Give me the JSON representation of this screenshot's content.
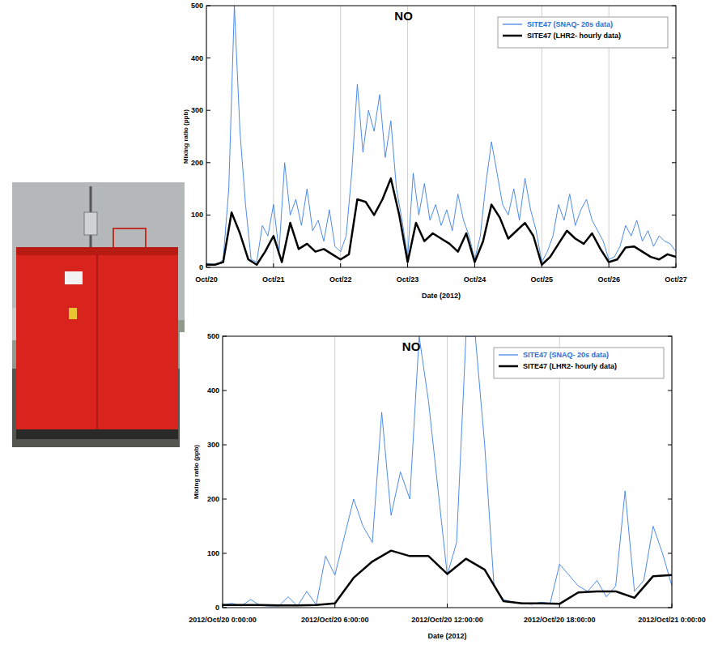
{
  "chart_data": [
    {
      "type": "line",
      "title": "NO",
      "x_label": "Date (2012)",
      "y_label": "Mixing ratio (ppb)",
      "xlim": [
        "2012-10-20T00:00",
        "2012-10-27T00:00"
      ],
      "xticks": [
        {
          "value": "2012-10-20T00:00",
          "label": "Oct/20"
        },
        {
          "value": "2012-10-21T00:00",
          "label": "Oct/21"
        },
        {
          "value": "2012-10-22T00:00",
          "label": "Oct/22"
        },
        {
          "value": "2012-10-23T00:00",
          "label": "Oct/23"
        },
        {
          "value": "2012-10-24T00:00",
          "label": "Oct/24"
        },
        {
          "value": "2012-10-25T00:00",
          "label": "Oct/25"
        },
        {
          "value": "2012-10-26T00:00",
          "label": "Oct/26"
        },
        {
          "value": "2012-10-27T00:00",
          "label": "Oct/27"
        }
      ],
      "ylim": [
        0,
        500
      ],
      "yticks": [
        0,
        100,
        200,
        300,
        400,
        500
      ],
      "grid": true,
      "legend": "upper right",
      "series": [
        {
          "name": "SITE47 (SNAQ- 20s data)",
          "color": "#3a7ee6",
          "line_style": "thin",
          "x": [
            "2012-10-20T00:00",
            "2012-10-20T02:00",
            "2012-10-20T04:00",
            "2012-10-20T06:00",
            "2012-10-20T08:00",
            "2012-10-20T10:00",
            "2012-10-20T12:00",
            "2012-10-20T14:00",
            "2012-10-20T16:00",
            "2012-10-20T18:00",
            "2012-10-20T20:00",
            "2012-10-20T22:00",
            "2012-10-21T00:00",
            "2012-10-21T02:00",
            "2012-10-21T04:00",
            "2012-10-21T06:00",
            "2012-10-21T08:00",
            "2012-10-21T10:00",
            "2012-10-21T12:00",
            "2012-10-21T14:00",
            "2012-10-21T16:00",
            "2012-10-21T18:00",
            "2012-10-21T20:00",
            "2012-10-21T22:00",
            "2012-10-22T00:00",
            "2012-10-22T02:00",
            "2012-10-22T04:00",
            "2012-10-22T06:00",
            "2012-10-22T08:00",
            "2012-10-22T10:00",
            "2012-10-22T12:00",
            "2012-10-22T14:00",
            "2012-10-22T16:00",
            "2012-10-22T18:00",
            "2012-10-22T20:00",
            "2012-10-22T22:00",
            "2012-10-23T00:00",
            "2012-10-23T02:00",
            "2012-10-23T04:00",
            "2012-10-23T06:00",
            "2012-10-23T08:00",
            "2012-10-23T10:00",
            "2012-10-23T12:00",
            "2012-10-23T14:00",
            "2012-10-23T16:00",
            "2012-10-23T18:00",
            "2012-10-23T20:00",
            "2012-10-23T22:00",
            "2012-10-24T00:00",
            "2012-10-24T02:00",
            "2012-10-24T04:00",
            "2012-10-24T06:00",
            "2012-10-24T08:00",
            "2012-10-24T10:00",
            "2012-10-24T12:00",
            "2012-10-24T14:00",
            "2012-10-24T16:00",
            "2012-10-24T18:00",
            "2012-10-24T20:00",
            "2012-10-24T22:00",
            "2012-10-25T00:00",
            "2012-10-25T02:00",
            "2012-10-25T04:00",
            "2012-10-25T06:00",
            "2012-10-25T08:00",
            "2012-10-25T10:00",
            "2012-10-25T12:00",
            "2012-10-25T14:00",
            "2012-10-25T16:00",
            "2012-10-25T18:00",
            "2012-10-25T20:00",
            "2012-10-25T22:00",
            "2012-10-26T00:00",
            "2012-10-26T02:00",
            "2012-10-26T04:00",
            "2012-10-26T06:00",
            "2012-10-26T08:00",
            "2012-10-26T10:00",
            "2012-10-26T12:00",
            "2012-10-26T14:00",
            "2012-10-26T16:00",
            "2012-10-26T18:00",
            "2012-10-26T20:00",
            "2012-10-26T22:00",
            "2012-10-27T00:00"
          ],
          "values": [
            8,
            6,
            5,
            15,
            150,
            500,
            260,
            120,
            15,
            10,
            80,
            60,
            120,
            30,
            200,
            100,
            130,
            80,
            150,
            70,
            90,
            50,
            110,
            40,
            30,
            60,
            180,
            350,
            220,
            300,
            260,
            330,
            210,
            280,
            150,
            90,
            20,
            180,
            100,
            160,
            90,
            120,
            80,
            110,
            70,
            140,
            90,
            60,
            15,
            60,
            160,
            240,
            180,
            120,
            100,
            150,
            90,
            170,
            110,
            70,
            10,
            30,
            60,
            120,
            90,
            140,
            80,
            110,
            130,
            90,
            70,
            50,
            15,
            20,
            40,
            80,
            60,
            90,
            50,
            70,
            40,
            60,
            50,
            45,
            30
          ]
        },
        {
          "name": "SITE47 (LHR2- hourly data)",
          "color": "#000000",
          "line_style": "thick",
          "x": [
            "2012-10-20T00:00",
            "2012-10-20T03:00",
            "2012-10-20T06:00",
            "2012-10-20T09:00",
            "2012-10-20T12:00",
            "2012-10-20T15:00",
            "2012-10-20T18:00",
            "2012-10-20T21:00",
            "2012-10-21T00:00",
            "2012-10-21T03:00",
            "2012-10-21T06:00",
            "2012-10-21T09:00",
            "2012-10-21T12:00",
            "2012-10-21T15:00",
            "2012-10-21T18:00",
            "2012-10-21T21:00",
            "2012-10-22T00:00",
            "2012-10-22T03:00",
            "2012-10-22T06:00",
            "2012-10-22T09:00",
            "2012-10-22T12:00",
            "2012-10-22T15:00",
            "2012-10-22T18:00",
            "2012-10-22T21:00",
            "2012-10-23T00:00",
            "2012-10-23T03:00",
            "2012-10-23T06:00",
            "2012-10-23T09:00",
            "2012-10-23T12:00",
            "2012-10-23T15:00",
            "2012-10-23T18:00",
            "2012-10-23T21:00",
            "2012-10-24T00:00",
            "2012-10-24T03:00",
            "2012-10-24T06:00",
            "2012-10-24T09:00",
            "2012-10-24T12:00",
            "2012-10-24T15:00",
            "2012-10-24T18:00",
            "2012-10-24T21:00",
            "2012-10-25T00:00",
            "2012-10-25T03:00",
            "2012-10-25T06:00",
            "2012-10-25T09:00",
            "2012-10-25T12:00",
            "2012-10-25T15:00",
            "2012-10-25T18:00",
            "2012-10-25T21:00",
            "2012-10-26T00:00",
            "2012-10-26T03:00",
            "2012-10-26T06:00",
            "2012-10-26T09:00",
            "2012-10-26T12:00",
            "2012-10-26T15:00",
            "2012-10-26T18:00",
            "2012-10-26T21:00",
            "2012-10-27T00:00"
          ],
          "values": [
            5,
            5,
            10,
            105,
            65,
            15,
            5,
            30,
            60,
            10,
            85,
            35,
            45,
            30,
            35,
            25,
            15,
            25,
            130,
            125,
            100,
            130,
            170,
            100,
            10,
            85,
            50,
            65,
            55,
            45,
            30,
            65,
            10,
            50,
            120,
            95,
            55,
            70,
            85,
            60,
            5,
            20,
            45,
            70,
            55,
            45,
            65,
            35,
            10,
            15,
            38,
            40,
            30,
            20,
            15,
            25,
            20
          ]
        }
      ]
    },
    {
      "type": "line",
      "title": "NO",
      "x_label": "Date (2012)",
      "y_label": "Mixing ratio (ppb)",
      "xlim": [
        "2012-10-20T00:00",
        "2012-10-21T00:00"
      ],
      "xticks": [
        {
          "value": "2012-10-20T00:00",
          "label": "2012/Oct/20 0:00:00"
        },
        {
          "value": "2012-10-20T06:00",
          "label": "2012/Oct/20 6:00:00"
        },
        {
          "value": "2012-10-20T12:00",
          "label": "2012/Oct/20 12:00:00"
        },
        {
          "value": "2012-10-20T18:00",
          "label": "2012/Oct/20 18:00:00"
        },
        {
          "value": "2012-10-21T00:00",
          "label": "2012/Oct/21 0:00:00"
        }
      ],
      "ylim": [
        0,
        500
      ],
      "yticks": [
        0,
        100,
        200,
        300,
        400,
        500
      ],
      "grid": true,
      "legend": "upper right",
      "series": [
        {
          "name": "SITE47 (SNAQ- 20s data)",
          "color": "#3a7ee6",
          "line_style": "thin",
          "x": [
            "2012-10-20T00:00",
            "2012-10-20T00:30",
            "2012-10-20T01:00",
            "2012-10-20T01:30",
            "2012-10-20T02:00",
            "2012-10-20T02:30",
            "2012-10-20T03:00",
            "2012-10-20T03:30",
            "2012-10-20T04:00",
            "2012-10-20T04:30",
            "2012-10-20T05:00",
            "2012-10-20T05:30",
            "2012-10-20T06:00",
            "2012-10-20T06:30",
            "2012-10-20T07:00",
            "2012-10-20T07:30",
            "2012-10-20T08:00",
            "2012-10-20T08:30",
            "2012-10-20T09:00",
            "2012-10-20T09:30",
            "2012-10-20T10:00",
            "2012-10-20T10:30",
            "2012-10-20T11:00",
            "2012-10-20T11:30",
            "2012-10-20T12:00",
            "2012-10-20T12:30",
            "2012-10-20T13:00",
            "2012-10-20T13:30",
            "2012-10-20T14:00",
            "2012-10-20T14:30",
            "2012-10-20T15:00",
            "2012-10-20T15:30",
            "2012-10-20T16:00",
            "2012-10-20T16:30",
            "2012-10-20T17:00",
            "2012-10-20T17:30",
            "2012-10-20T18:00",
            "2012-10-20T18:30",
            "2012-10-20T19:00",
            "2012-10-20T19:30",
            "2012-10-20T20:00",
            "2012-10-20T20:30",
            "2012-10-20T21:00",
            "2012-10-20T21:30",
            "2012-10-20T22:00",
            "2012-10-20T22:30",
            "2012-10-20T23:00",
            "2012-10-20T23:30",
            "2012-10-21T00:00"
          ],
          "values": [
            5,
            8,
            3,
            15,
            4,
            3,
            3,
            20,
            3,
            30,
            5,
            95,
            60,
            130,
            200,
            150,
            120,
            360,
            170,
            250,
            200,
            500,
            380,
            220,
            60,
            120,
            500,
            500,
            300,
            40,
            15,
            10,
            8,
            6,
            10,
            8,
            80,
            60,
            40,
            30,
            50,
            20,
            40,
            215,
            30,
            50,
            150,
            100,
            40
          ]
        },
        {
          "name": "SITE47 (LHR2- hourly data)",
          "color": "#000000",
          "line_style": "thick",
          "x": [
            "2012-10-20T00:00",
            "2012-10-20T01:00",
            "2012-10-20T02:00",
            "2012-10-20T03:00",
            "2012-10-20T04:00",
            "2012-10-20T05:00",
            "2012-10-20T06:00",
            "2012-10-20T07:00",
            "2012-10-20T08:00",
            "2012-10-20T09:00",
            "2012-10-20T10:00",
            "2012-10-20T11:00",
            "2012-10-20T12:00",
            "2012-10-20T13:00",
            "2012-10-20T14:00",
            "2012-10-20T15:00",
            "2012-10-20T16:00",
            "2012-10-20T17:00",
            "2012-10-20T18:00",
            "2012-10-20T19:00",
            "2012-10-20T20:00",
            "2012-10-20T21:00",
            "2012-10-20T22:00",
            "2012-10-20T23:00",
            "2012-10-21T00:00"
          ],
          "values": [
            5,
            5,
            5,
            4,
            4,
            5,
            8,
            55,
            85,
            105,
            95,
            95,
            62,
            90,
            70,
            12,
            8,
            8,
            7,
            28,
            30,
            30,
            18,
            58,
            60
          ]
        }
      ]
    }
  ]
}
